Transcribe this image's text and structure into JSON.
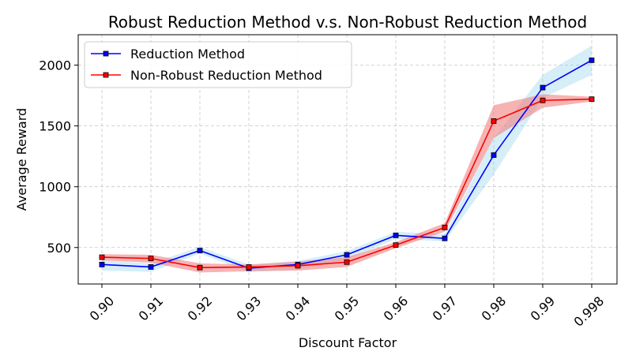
{
  "chart_data": {
    "type": "line",
    "title": "Robust Reduction Method v.s. Non-Robust Reduction Method",
    "xlabel": "Discount Factor",
    "ylabel": "Average Reward",
    "categories": [
      "0.90",
      "0.91",
      "0.92",
      "0.93",
      "0.94",
      "0.95",
      "0.96",
      "0.97",
      "0.98",
      "0.99",
      "0.998"
    ],
    "yticks": [
      500,
      1000,
      1500,
      2000
    ],
    "ylim": [
      200,
      2250
    ],
    "grid": true,
    "legend_position": "upper-left",
    "series": [
      {
        "name": "Reduction Method",
        "color": "#0000ff",
        "band_color": "#87ceeb",
        "values": [
          360,
          340,
          475,
          330,
          360,
          440,
          600,
          575,
          1260,
          1815,
          2040
        ],
        "lower": [
          310,
          300,
          450,
          300,
          320,
          400,
          570,
          550,
          1100,
          1730,
          1920
        ],
        "upper": [
          395,
          370,
          505,
          360,
          390,
          470,
          630,
          610,
          1400,
          1920,
          2160
        ]
      },
      {
        "name": "Non-Robust Reduction Method",
        "color": "#ff0000",
        "band_color": "#f08080",
        "values": [
          420,
          410,
          335,
          340,
          350,
          380,
          520,
          665,
          1540,
          1710,
          1720
        ],
        "lower": [
          395,
          375,
          295,
          305,
          310,
          340,
          495,
          630,
          1400,
          1650,
          1700
        ],
        "upper": [
          445,
          440,
          370,
          360,
          385,
          420,
          545,
          700,
          1670,
          1760,
          1740
        ]
      }
    ]
  }
}
